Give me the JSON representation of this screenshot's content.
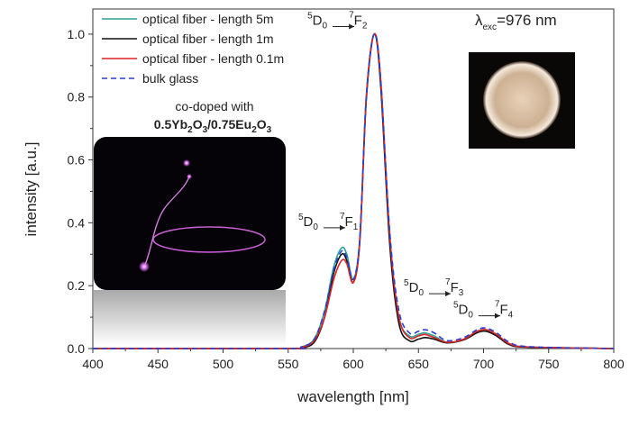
{
  "chart_data": {
    "type": "line",
    "xlabel": "wavelength [nm]",
    "ylabel": "intensity [a.u.]",
    "xlim": [
      400,
      800
    ],
    "ylim": [
      0,
      1.08
    ],
    "x_ticks": [
      400,
      450,
      500,
      550,
      600,
      650,
      700,
      750,
      800
    ],
    "y_ticks": [
      "0.0",
      "0.2",
      "0.4",
      "0.6",
      "0.8",
      "1.0"
    ],
    "y_tick_values": [
      0,
      0.2,
      0.4,
      0.6,
      0.8,
      1.0
    ],
    "grid": false,
    "legend_position": "top-left",
    "series": [
      {
        "name": "optical fiber - length 5m",
        "color": "#2aa198",
        "dash": "solid",
        "points": [
          [
            400,
            0.0
          ],
          [
            550,
            0.0
          ],
          [
            560,
            0.005
          ],
          [
            570,
            0.03
          ],
          [
            578,
            0.12
          ],
          [
            585,
            0.26
          ],
          [
            591,
            0.32
          ],
          [
            595,
            0.3
          ],
          [
            600,
            0.22
          ],
          [
            605,
            0.35
          ],
          [
            610,
            0.8
          ],
          [
            616,
            1.0
          ],
          [
            621,
            0.85
          ],
          [
            628,
            0.35
          ],
          [
            635,
            0.1
          ],
          [
            643,
            0.04
          ],
          [
            650,
            0.045
          ],
          [
            655,
            0.05
          ],
          [
            662,
            0.04
          ],
          [
            672,
            0.02
          ],
          [
            685,
            0.03
          ],
          [
            695,
            0.055
          ],
          [
            702,
            0.06
          ],
          [
            710,
            0.045
          ],
          [
            720,
            0.015
          ],
          [
            735,
            0.005
          ],
          [
            800,
            0.0
          ]
        ]
      },
      {
        "name": "optical fiber - length 1m",
        "color": "#111111",
        "dash": "solid",
        "points": [
          [
            400,
            0.0
          ],
          [
            550,
            0.0
          ],
          [
            560,
            0.003
          ],
          [
            570,
            0.02
          ],
          [
            578,
            0.1
          ],
          [
            585,
            0.24
          ],
          [
            591,
            0.3
          ],
          [
            595,
            0.28
          ],
          [
            600,
            0.21
          ],
          [
            605,
            0.34
          ],
          [
            610,
            0.79
          ],
          [
            616,
            1.0
          ],
          [
            621,
            0.84
          ],
          [
            628,
            0.33
          ],
          [
            635,
            0.08
          ],
          [
            643,
            0.025
          ],
          [
            650,
            0.03
          ],
          [
            655,
            0.035
          ],
          [
            662,
            0.03
          ],
          [
            672,
            0.018
          ],
          [
            685,
            0.028
          ],
          [
            695,
            0.05
          ],
          [
            702,
            0.055
          ],
          [
            710,
            0.04
          ],
          [
            720,
            0.012
          ],
          [
            735,
            0.004
          ],
          [
            800,
            0.0
          ]
        ]
      },
      {
        "name": "optical fiber - length 0.1m",
        "color": "#e02424",
        "dash": "solid",
        "points": [
          [
            400,
            0.0
          ],
          [
            550,
            0.0
          ],
          [
            560,
            0.004
          ],
          [
            570,
            0.025
          ],
          [
            578,
            0.1
          ],
          [
            585,
            0.22
          ],
          [
            591,
            0.28
          ],
          [
            595,
            0.27
          ],
          [
            600,
            0.21
          ],
          [
            605,
            0.34
          ],
          [
            610,
            0.8
          ],
          [
            616,
            1.0
          ],
          [
            621,
            0.86
          ],
          [
            628,
            0.36
          ],
          [
            635,
            0.1
          ],
          [
            643,
            0.035
          ],
          [
            650,
            0.04
          ],
          [
            655,
            0.045
          ],
          [
            662,
            0.035
          ],
          [
            672,
            0.02
          ],
          [
            685,
            0.03
          ],
          [
            695,
            0.055
          ],
          [
            702,
            0.06
          ],
          [
            710,
            0.045
          ],
          [
            720,
            0.015
          ],
          [
            735,
            0.005
          ],
          [
            800,
            0.0
          ]
        ]
      },
      {
        "name": "bulk glass",
        "color": "#2a3fd1",
        "dash": "dashed",
        "points": [
          [
            400,
            0.0
          ],
          [
            550,
            0.0
          ],
          [
            560,
            0.005
          ],
          [
            570,
            0.03
          ],
          [
            578,
            0.12
          ],
          [
            585,
            0.25
          ],
          [
            591,
            0.31
          ],
          [
            595,
            0.29
          ],
          [
            600,
            0.22
          ],
          [
            605,
            0.35
          ],
          [
            610,
            0.8
          ],
          [
            616,
            1.0
          ],
          [
            621,
            0.86
          ],
          [
            628,
            0.37
          ],
          [
            635,
            0.12
          ],
          [
            643,
            0.05
          ],
          [
            650,
            0.055
          ],
          [
            655,
            0.06
          ],
          [
            662,
            0.05
          ],
          [
            672,
            0.025
          ],
          [
            685,
            0.035
          ],
          [
            695,
            0.06
          ],
          [
            702,
            0.065
          ],
          [
            710,
            0.05
          ],
          [
            720,
            0.02
          ],
          [
            735,
            0.006
          ],
          [
            800,
            0.0
          ]
        ]
      }
    ],
    "annotations": {
      "excitation": {
        "lambda": "λ",
        "sub": "exc",
        "value": "=976 nm"
      },
      "codoped_line1": "co-doped with",
      "codoped_line2": {
        "a": "0.5Yb",
        "a_sub": "2",
        "b": "O",
        "b_sub": "3",
        "c": "/0.75Eu",
        "c_sub": "2",
        "d": "O",
        "d_sub": "3"
      },
      "transitions": [
        {
          "sup1": "5",
          "from": "D",
          "from_sub": "0",
          "sup2": "7",
          "to": "F",
          "to_sub": "1",
          "x": 591,
          "y": 0.39
        },
        {
          "sup1": "5",
          "from": "D",
          "from_sub": "0",
          "sup2": "7",
          "to": "F",
          "to_sub": "2",
          "x": 598,
          "y": 1.03
        },
        {
          "sup1": "5",
          "from": "D",
          "from_sub": "0",
          "sup2": "7",
          "to": "F",
          "to_sub": "3",
          "x": 672,
          "y": 0.18
        },
        {
          "sup1": "5",
          "from": "D",
          "from_sub": "0",
          "sup2": "7",
          "to": "F",
          "to_sub": "4",
          "x": 710,
          "y": 0.11
        }
      ]
    }
  }
}
